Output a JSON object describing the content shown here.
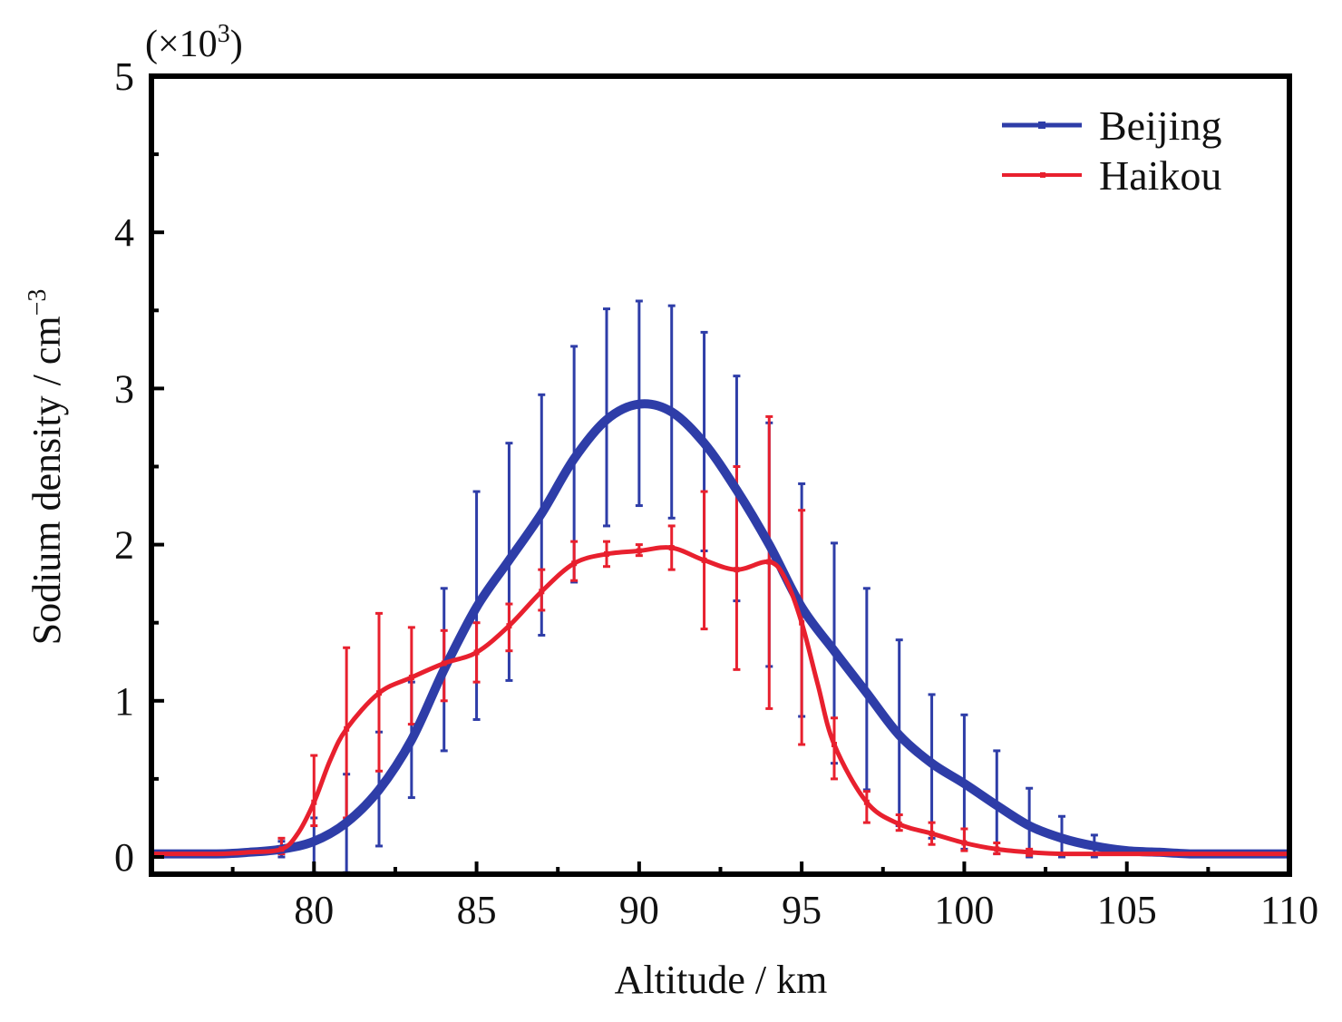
{
  "chart_data": {
    "type": "line",
    "xlabel": "Altitude / km",
    "ylabel": "Sodium density / cm",
    "ylabel_sup": "−3",
    "multiplier": {
      "prefix": "(×10",
      "exp": "3",
      "suffix": ")"
    },
    "xlim": [
      75,
      110
    ],
    "ylim": [
      0,
      5
    ],
    "xticks": [
      80,
      85,
      90,
      95,
      100,
      105,
      110
    ],
    "yticks": [
      0,
      1,
      2,
      3,
      4,
      5
    ],
    "legend_position": "top-right",
    "grid": false,
    "series": [
      {
        "name": "Beijing",
        "color": "#2e3da8",
        "x": [
          75,
          77,
          78,
          79,
          80,
          81,
          82,
          83,
          84,
          85,
          86,
          87,
          88,
          89,
          90,
          91,
          92,
          93,
          94,
          95,
          96,
          97,
          98,
          99,
          100,
          101,
          102,
          103,
          104,
          105,
          106,
          107,
          108,
          110
        ],
        "y": [
          0.02,
          0.02,
          0.03,
          0.05,
          0.1,
          0.22,
          0.43,
          0.75,
          1.2,
          1.6,
          1.9,
          2.2,
          2.55,
          2.8,
          2.9,
          2.85,
          2.65,
          2.35,
          2.0,
          1.6,
          1.32,
          1.05,
          0.78,
          0.6,
          0.47,
          0.33,
          0.2,
          0.12,
          0.07,
          0.04,
          0.03,
          0.02,
          0.02,
          0.02
        ],
        "error_x": [
          79,
          80,
          81,
          82,
          83,
          84,
          85,
          86,
          87,
          88,
          89,
          90,
          91,
          92,
          93,
          94,
          95,
          96,
          97,
          98,
          99,
          100,
          101,
          102,
          103,
          104
        ],
        "error_lower": [
          0.0,
          -0.1,
          -0.1,
          0.07,
          0.38,
          0.68,
          0.88,
          1.13,
          1.42,
          1.76,
          2.12,
          2.25,
          2.17,
          1.96,
          1.64,
          1.22,
          0.9,
          0.6,
          0.43,
          0.2,
          0.12,
          0.05,
          0.02,
          0.0,
          0.0,
          0.0
        ],
        "error_upper": [
          0.1,
          0.25,
          0.53,
          0.8,
          1.12,
          1.72,
          2.34,
          2.65,
          2.96,
          3.27,
          3.51,
          3.56,
          3.53,
          3.36,
          3.08,
          2.78,
          2.39,
          2.01,
          1.72,
          1.39,
          1.04,
          0.91,
          0.68,
          0.44,
          0.26,
          0.14
        ]
      },
      {
        "name": "Haikou",
        "color": "#e8202e",
        "x": [
          75,
          77,
          78,
          79,
          79.5,
          80,
          80.5,
          81,
          82,
          83,
          84,
          85,
          86,
          87,
          88,
          89,
          90,
          91,
          92,
          93,
          94,
          94.5,
          95,
          95.5,
          96,
          97,
          98,
          99,
          100,
          101,
          102,
          103,
          104,
          105,
          110
        ],
        "y": [
          0.02,
          0.02,
          0.03,
          0.05,
          0.15,
          0.35,
          0.62,
          0.82,
          1.05,
          1.15,
          1.24,
          1.31,
          1.48,
          1.7,
          1.88,
          1.94,
          1.96,
          1.98,
          1.9,
          1.84,
          1.89,
          1.78,
          1.5,
          1.1,
          0.72,
          0.35,
          0.21,
          0.15,
          0.09,
          0.05,
          0.03,
          0.02,
          0.02,
          0.02,
          0.02
        ],
        "error_x": [
          79,
          80,
          81,
          82,
          83,
          84,
          85,
          86,
          87,
          88,
          89,
          90,
          91,
          92,
          93,
          94,
          95,
          96,
          97,
          98,
          99,
          100,
          101,
          102
        ],
        "error_lower": [
          0.02,
          0.2,
          0.25,
          0.55,
          0.85,
          1.0,
          1.12,
          1.32,
          1.58,
          1.77,
          1.86,
          1.93,
          1.84,
          1.46,
          1.2,
          0.95,
          0.72,
          0.5,
          0.22,
          0.17,
          0.08,
          0.04,
          0.02,
          0.01
        ],
        "error_upper": [
          0.12,
          0.65,
          1.34,
          1.56,
          1.47,
          1.45,
          1.5,
          1.62,
          1.84,
          2.02,
          2.02,
          2.0,
          2.12,
          2.34,
          2.5,
          2.82,
          2.22,
          0.89,
          0.42,
          0.27,
          0.22,
          0.18,
          0.09,
          0.05
        ]
      }
    ]
  }
}
